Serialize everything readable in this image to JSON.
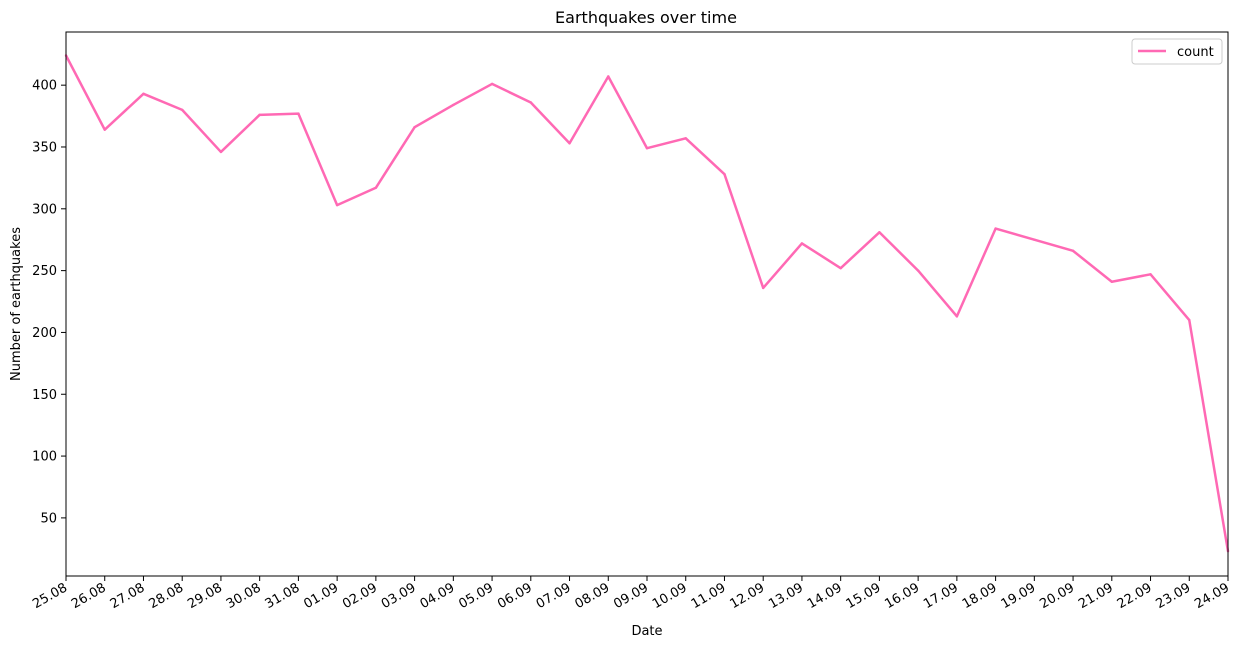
{
  "chart_data": {
    "type": "line",
    "title": "Earthquakes over time",
    "xlabel": "Date",
    "ylabel": "Number of earthquakes",
    "ylim": [
      3,
      443
    ],
    "yticks": [
      50,
      100,
      150,
      200,
      250,
      300,
      350,
      400
    ],
    "grid": false,
    "legend_position": "top-right",
    "categories": [
      "25.08",
      "26.08",
      "27.08",
      "28.08",
      "29.08",
      "30.08",
      "31.08",
      "01.09",
      "02.09",
      "03.09",
      "04.09",
      "05.09",
      "06.09",
      "07.09",
      "08.09",
      "09.09",
      "10.09",
      "11.09",
      "12.09",
      "13.09",
      "14.09",
      "15.09",
      "16.09",
      "17.09",
      "18.09",
      "19.09",
      "20.09",
      "21.09",
      "22.09",
      "23.09",
      "24.09"
    ],
    "series": [
      {
        "name": "count",
        "color": "#ff69b4",
        "values": [
          424,
          364,
          393,
          380,
          346,
          376,
          377,
          303,
          317,
          366,
          384,
          401,
          386,
          353,
          407,
          349,
          357,
          328,
          236,
          272,
          252,
          281,
          250,
          213,
          284,
          275,
          266,
          241,
          247,
          210,
          23
        ]
      }
    ]
  }
}
